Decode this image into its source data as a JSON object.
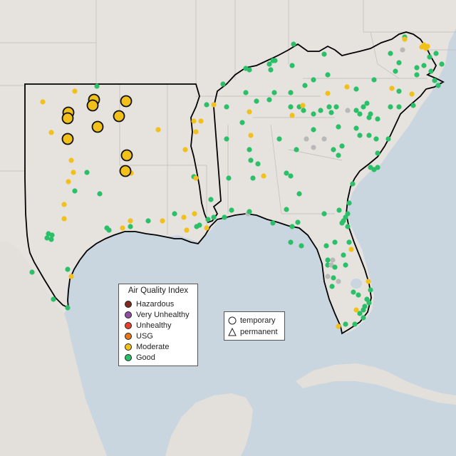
{
  "legend": {
    "title": "Air Quality Index",
    "categories": [
      {
        "label": "Hazardous",
        "color": "#7e2a1f"
      },
      {
        "label": "Very Unhealthy",
        "color": "#8f4fa3"
      },
      {
        "label": "Unhealthy",
        "color": "#e2432a"
      },
      {
        "label": "USG",
        "color": "#e5761b"
      },
      {
        "label": "Moderate",
        "color": "#f2c01a"
      },
      {
        "label": "Good",
        "color": "#2bbf68"
      }
    ]
  },
  "shape_legend": {
    "temporary": "temporary",
    "permanent": "permanent"
  },
  "colors": {
    "ocean": "#c9d6e0",
    "land": "#e6e3df",
    "mexico_land": "#e3e0dc",
    "state_border": "#ffffff",
    "region_border": "#000000",
    "no_data": "#b9b9b9"
  }
}
